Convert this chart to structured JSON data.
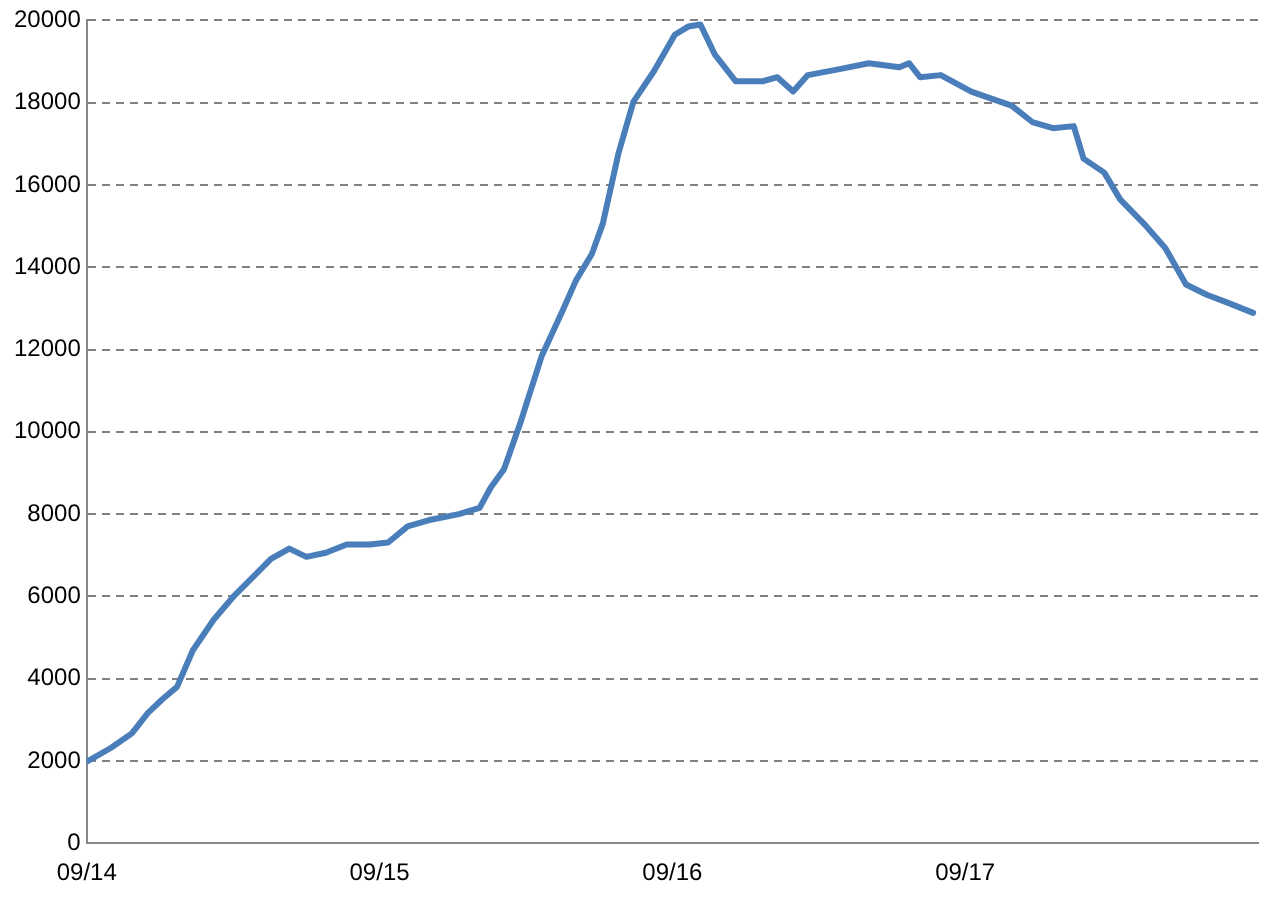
{
  "chart_data": {
    "type": "line",
    "xlim": [
      "--09-14",
      "--09-18"
    ],
    "xticks": [
      {
        "value": "--09-14",
        "label": "09/14"
      },
      {
        "value": "--09-15",
        "label": "09/15"
      },
      {
        "value": "--09-16",
        "label": "09/16"
      },
      {
        "value": "--09-17",
        "label": "09/17"
      }
    ],
    "ylim": [
      0,
      20000
    ],
    "yticks": [
      0,
      2000,
      4000,
      6000,
      8000,
      10000,
      12000,
      14000,
      16000,
      18000,
      20000
    ],
    "grid": "y",
    "legend": false,
    "marker": "none",
    "line_style": "solid",
    "series": [
      {
        "color": "#4a7ebb",
        "x": [
          "--09-14T00:00",
          "--09-14T02:00",
          "--09-14T03:42",
          "--09-14T05:00",
          "--09-14T06:12",
          "--09-14T07:24",
          "--09-14T08:42",
          "--09-14T10:24",
          "--09-14T12:06",
          "--09-14T13:48",
          "--09-14T15:06",
          "--09-14T16:36",
          "--09-14T18:00",
          "--09-14T19:36",
          "--09-14T21:18",
          "--09-14T23:12",
          "--09-15T00:42",
          "--09-15T02:18",
          "--09-15T04:00",
          "--09-15T06:30",
          "--09-15T08:12",
          "--09-15T09:06",
          "--09-15T10:12",
          "--09-15T11:36",
          "--09-15T13:18",
          "--09-15T15:00",
          "--09-15T16:06",
          "--09-15T17:24",
          "--09-15T18:18",
          "--09-15T19:36",
          "--09-15T20:48",
          "--09-15T22:30",
          "--09-16T00:12",
          "--09-16T01:18",
          "--09-16T02:18",
          "--09-16T03:30",
          "--09-16T05:12",
          "--09-16T07:24",
          "--09-16T08:36",
          "--09-16T09:54",
          "--09-16T11:06",
          "--09-16T13:36",
          "--09-16T16:06",
          "--09-16T18:36",
          "--09-16T19:24",
          "--09-16T20:18",
          "--09-16T22:00",
          "--09-17T00:30",
          "--09-17T03:48",
          "--09-17T05:30",
          "--09-17T07:12",
          "--09-17T08:54",
          "--09-17T09:42",
          "--09-17T11:24",
          "--09-17T12:42",
          "--09-17T14:48",
          "--09-17T16:24",
          "--09-17T18:06",
          "--09-17T19:48",
          "--09-17T21:30",
          "--09-17T23:36"
        ],
        "values": [
          1980,
          2320,
          2670,
          3160,
          3500,
          3800,
          4690,
          5430,
          6020,
          6520,
          6910,
          7160,
          6960,
          7060,
          7260,
          7260,
          7310,
          7700,
          7850,
          8000,
          8150,
          8640,
          9090,
          10270,
          11850,
          12940,
          13680,
          14320,
          15060,
          16790,
          18020,
          18770,
          19650,
          19850,
          19900,
          19160,
          18520,
          18520,
          18620,
          18270,
          18670,
          18810,
          18960,
          18860,
          18960,
          18620,
          18670,
          18270,
          17930,
          17530,
          17380,
          17430,
          16640,
          16300,
          15650,
          15010,
          14470,
          13580,
          13330,
          13140,
          12890
        ]
      }
    ]
  }
}
